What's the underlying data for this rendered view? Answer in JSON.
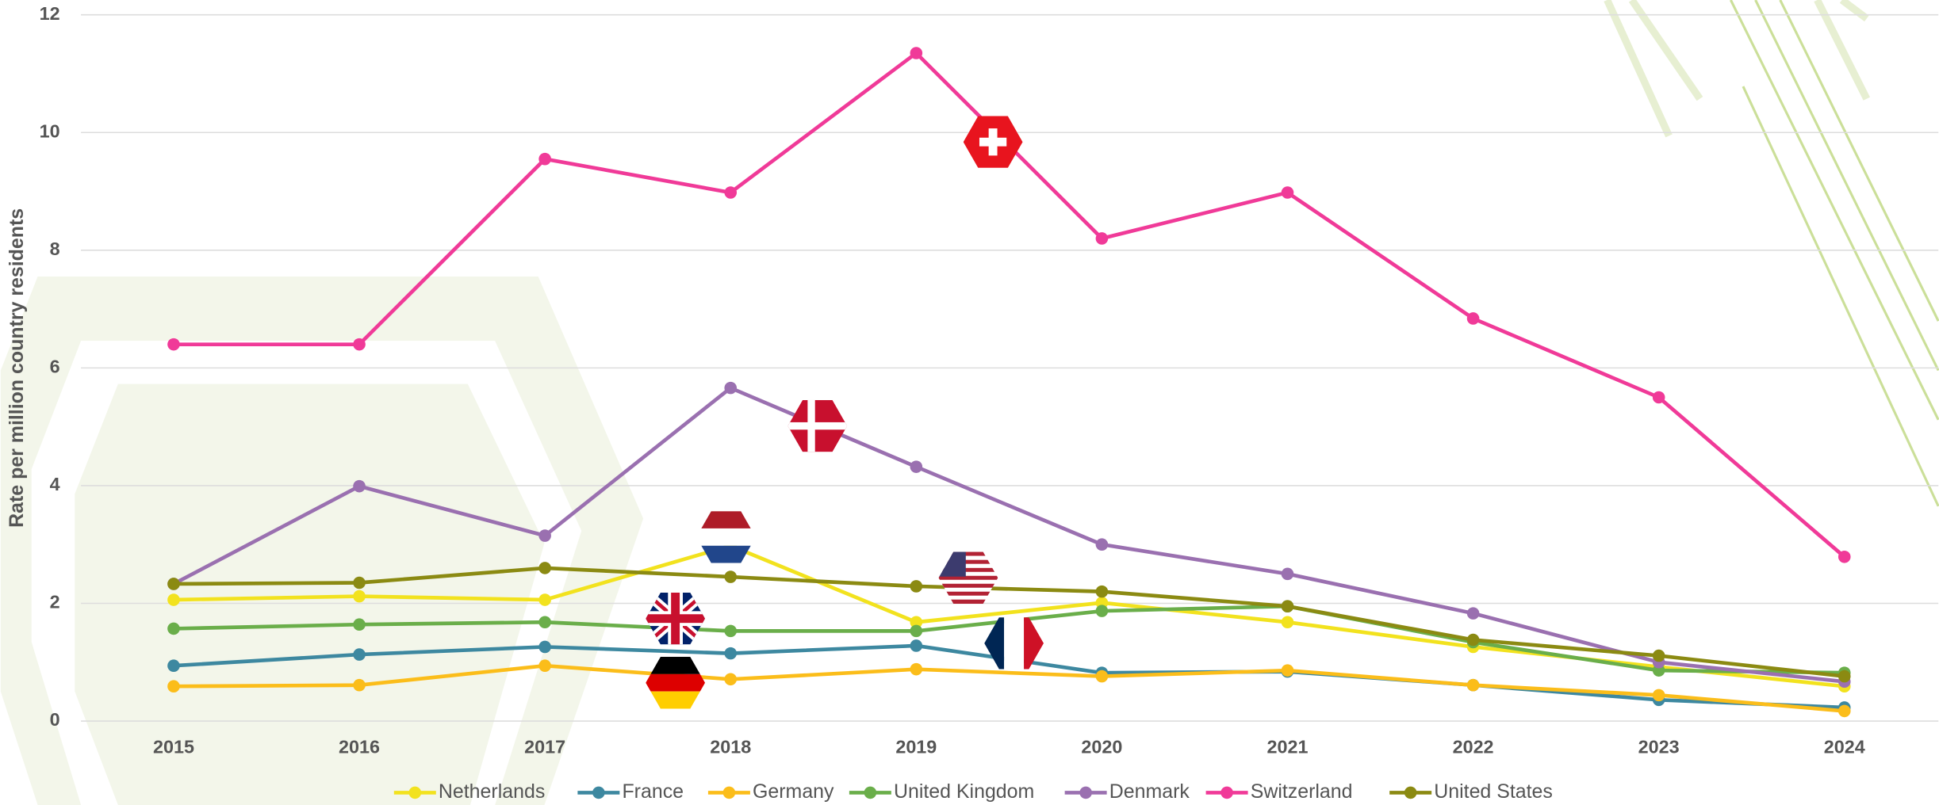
{
  "chart_data": {
    "type": "line",
    "y_label": "Rate per million country residents",
    "categories": [
      "2015",
      "2016",
      "2017",
      "2018",
      "2019",
      "2020",
      "2021",
      "2022",
      "2023",
      "2024"
    ],
    "ylim": [
      0,
      12
    ],
    "yticks": [
      0,
      2,
      4,
      6,
      8,
      10,
      12
    ],
    "grid": true,
    "legend": "bottom",
    "series": [
      {
        "name": "Netherlands",
        "color": "#f2e21e",
        "values": [
          2.06,
          2.12,
          2.06,
          2.98,
          1.68,
          2.01,
          1.68,
          1.26,
          0.92,
          0.59
        ]
      },
      {
        "name": "France",
        "color": "#3d88a0",
        "values": [
          0.94,
          1.13,
          1.26,
          1.15,
          1.28,
          0.82,
          0.84,
          0.61,
          0.36,
          0.23
        ]
      },
      {
        "name": "Germany",
        "color": "#fbbd1a",
        "values": [
          0.59,
          0.61,
          0.94,
          0.71,
          0.88,
          0.76,
          0.86,
          0.61,
          0.44,
          0.17
        ]
      },
      {
        "name": "United Kingdom",
        "color": "#6aae4a",
        "values": [
          1.57,
          1.64,
          1.68,
          1.53,
          1.53,
          1.87,
          1.95,
          1.34,
          0.86,
          0.82
        ]
      },
      {
        "name": "Denmark",
        "color": "#9a70b0",
        "values": [
          2.33,
          3.99,
          3.15,
          5.66,
          4.32,
          3.0,
          2.5,
          1.83,
          1.0,
          0.67
        ]
      },
      {
        "name": "Switzerland",
        "color": "#f03a98",
        "values": [
          6.4,
          6.4,
          9.55,
          8.98,
          11.35,
          8.2,
          8.98,
          6.84,
          5.5,
          2.79
        ]
      },
      {
        "name": "United States",
        "color": "#8b8a12",
        "values": [
          2.33,
          2.35,
          2.6,
          2.45,
          2.29,
          2.2,
          1.95,
          1.38,
          1.11,
          0.76
        ]
      }
    ]
  }
}
